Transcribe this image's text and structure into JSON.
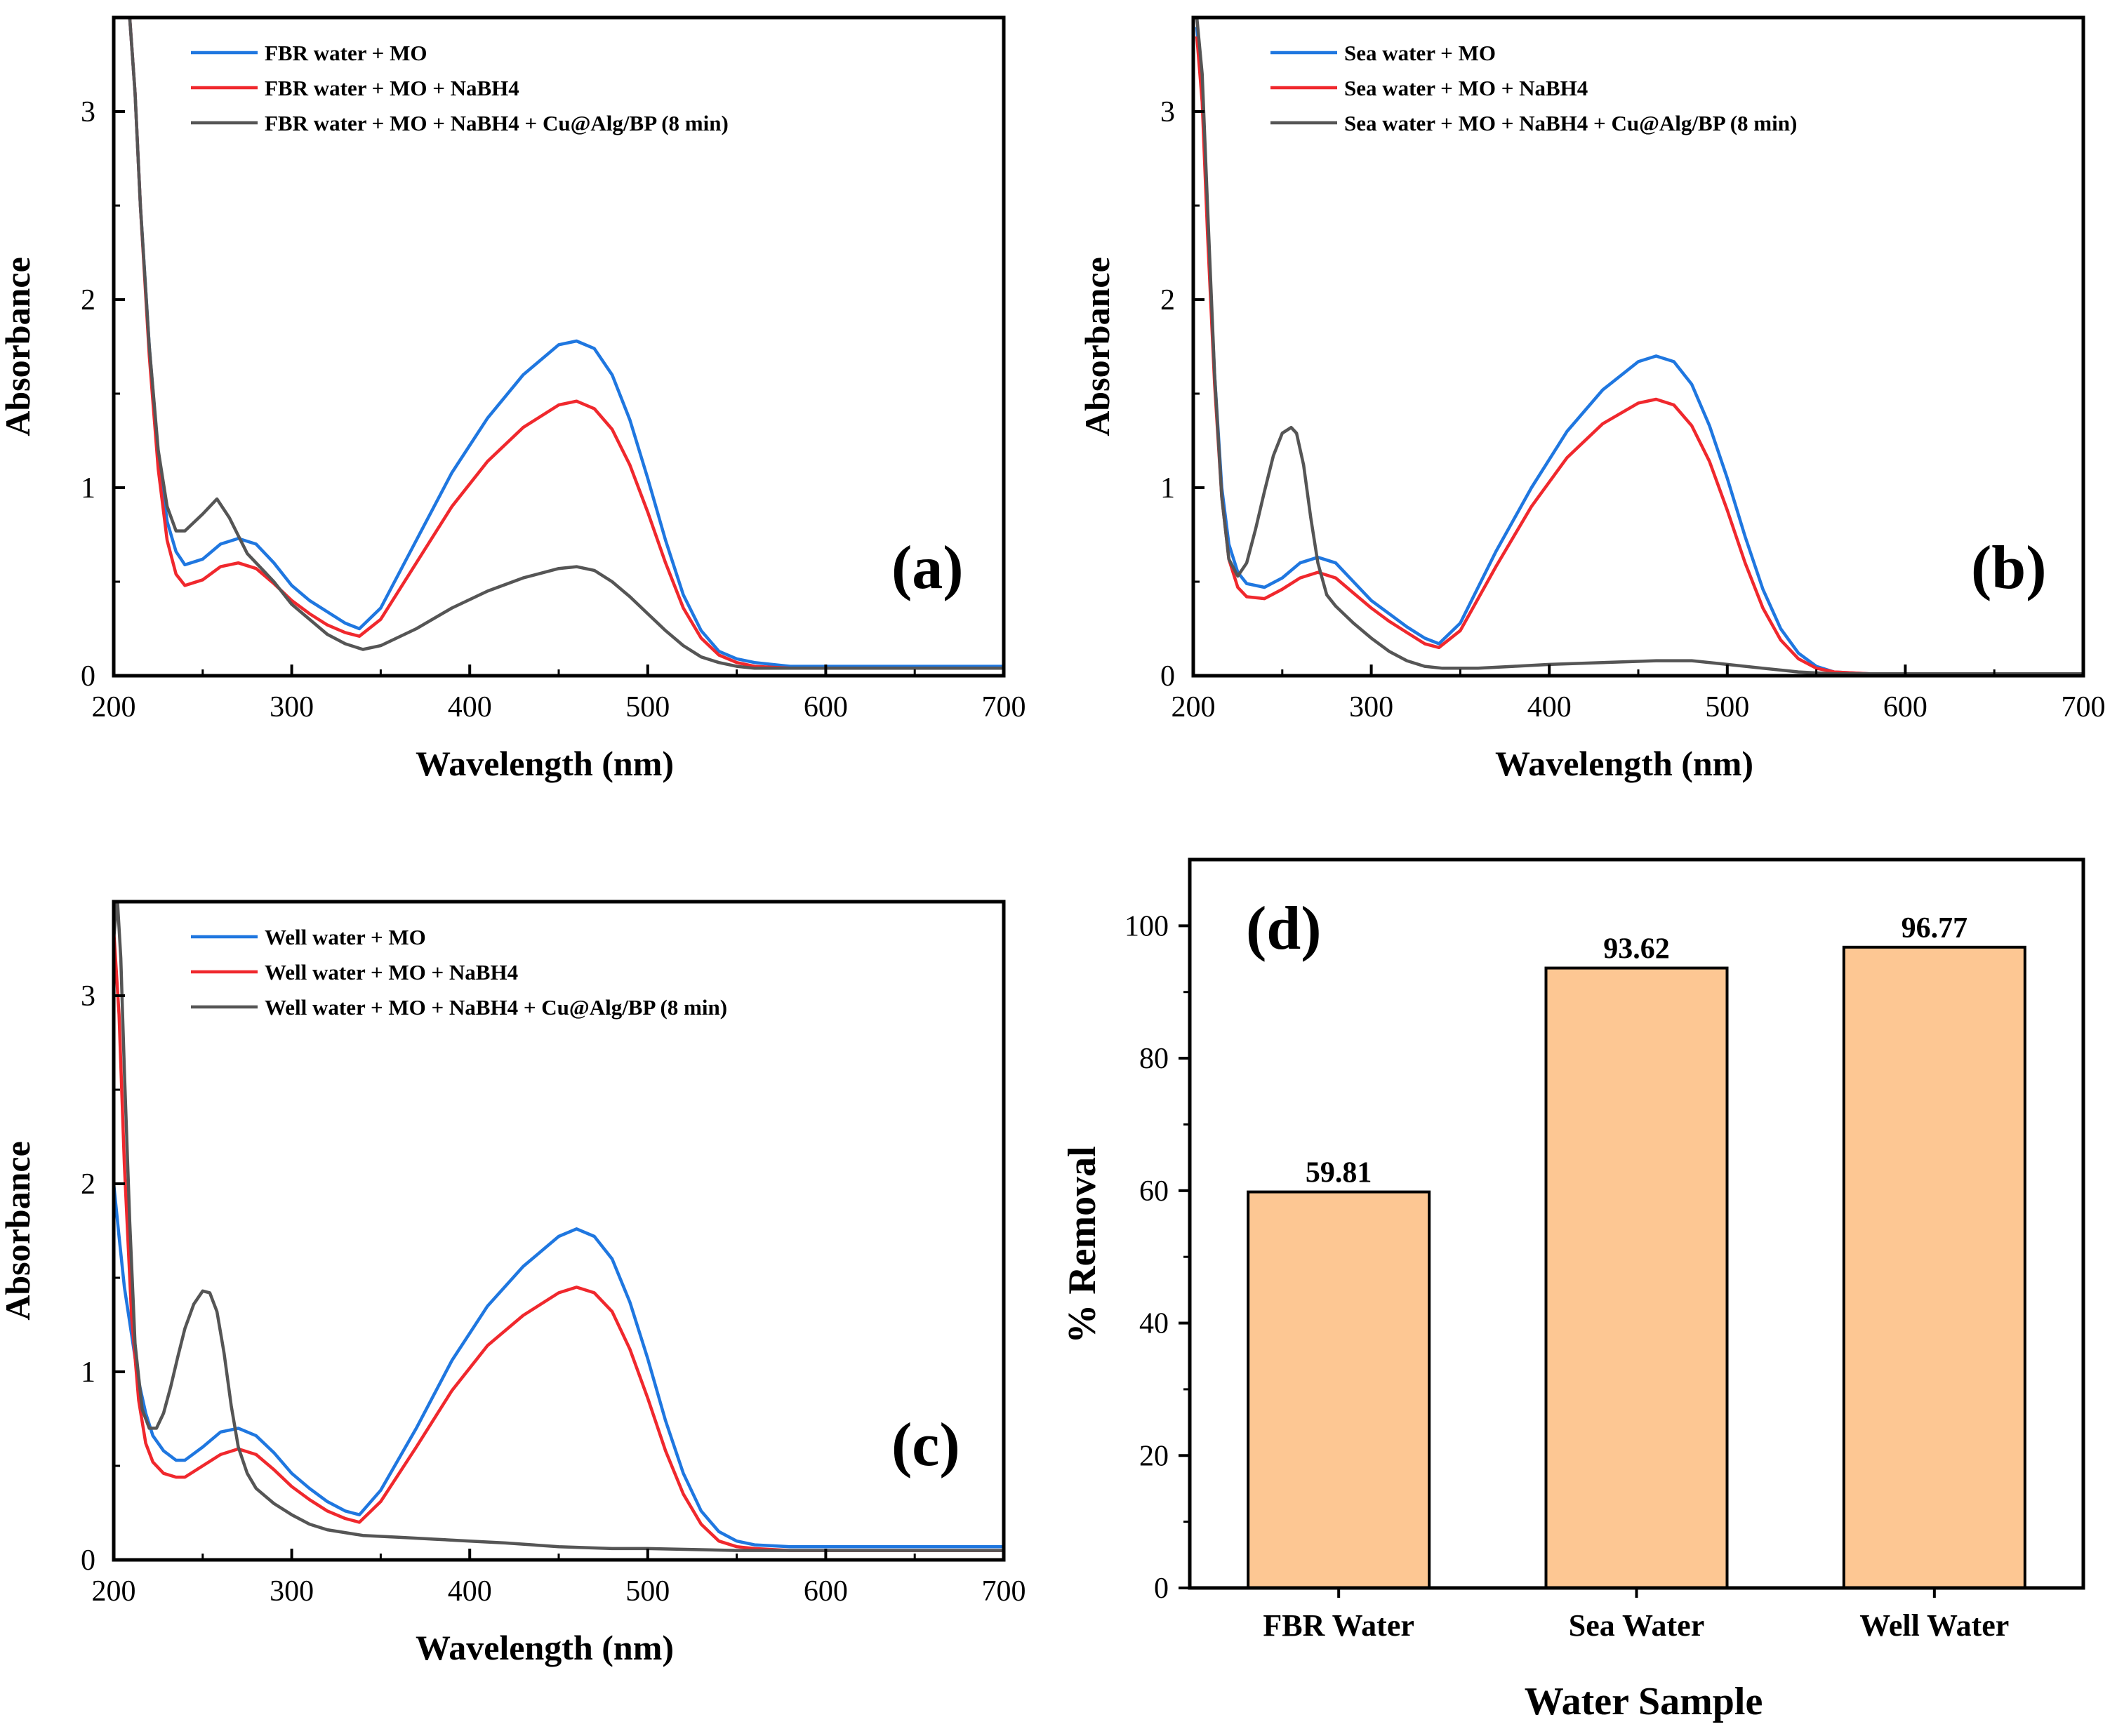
{
  "figure": "UV-vis absorbance spectra of MO reduction in real water samples and % removal",
  "colors": {
    "blue": "#1f77e0",
    "red": "#f0282d",
    "gray": "#555555",
    "bar": "#fdc793",
    "axis": "#000000"
  },
  "chart_data": [
    {
      "panel": "(a)",
      "type": "line",
      "xlabel": "Wavelength (nm)",
      "ylabel": "Absorbance",
      "xlim": [
        200,
        700
      ],
      "ylim": [
        0,
        3.5
      ],
      "xticks": [
        "200",
        "300",
        "400",
        "500",
        "600",
        "700"
      ],
      "yticks": [
        "0",
        "1",
        "2",
        "3"
      ],
      "legend_position": "top-left",
      "series": [
        {
          "name": "FBR water + MO",
          "color": "#1f77e0",
          "x": [
            209,
            212,
            215,
            220,
            225,
            230,
            235,
            240,
            250,
            260,
            270,
            280,
            290,
            300,
            310,
            320,
            330,
            338,
            350,
            370,
            390,
            410,
            430,
            450,
            460,
            470,
            480,
            490,
            500,
            510,
            520,
            530,
            540,
            550,
            560,
            580,
            600,
            650,
            700
          ],
          "y": [
            3.5,
            3.1,
            2.5,
            1.75,
            1.18,
            0.82,
            0.66,
            0.59,
            0.62,
            0.7,
            0.73,
            0.7,
            0.6,
            0.48,
            0.4,
            0.34,
            0.28,
            0.25,
            0.36,
            0.72,
            1.08,
            1.37,
            1.6,
            1.76,
            1.78,
            1.74,
            1.6,
            1.36,
            1.05,
            0.72,
            0.43,
            0.24,
            0.13,
            0.09,
            0.07,
            0.05,
            0.05,
            0.05,
            0.05
          ]
        },
        {
          "name": "FBR water + MO + NaBH4",
          "color": "#f0282d",
          "x": [
            209,
            212,
            215,
            220,
            225,
            230,
            235,
            240,
            250,
            260,
            270,
            280,
            290,
            300,
            310,
            320,
            330,
            338,
            350,
            370,
            390,
            410,
            430,
            450,
            460,
            470,
            480,
            490,
            500,
            510,
            520,
            530,
            540,
            550,
            560,
            580,
            600,
            650,
            700
          ],
          "y": [
            3.5,
            3.1,
            2.5,
            1.7,
            1.1,
            0.72,
            0.54,
            0.48,
            0.51,
            0.58,
            0.6,
            0.57,
            0.49,
            0.4,
            0.33,
            0.27,
            0.23,
            0.21,
            0.3,
            0.6,
            0.9,
            1.14,
            1.32,
            1.44,
            1.46,
            1.42,
            1.31,
            1.12,
            0.87,
            0.6,
            0.36,
            0.2,
            0.11,
            0.07,
            0.05,
            0.04,
            0.04,
            0.04,
            0.04
          ]
        },
        {
          "name": "FBR water + MO + NaBH4 + Cu@Alg/BP (8 min)",
          "color": "#555555",
          "x": [
            209,
            212,
            215,
            220,
            225,
            230,
            235,
            240,
            250,
            258,
            265,
            275,
            290,
            300,
            310,
            320,
            330,
            340,
            350,
            370,
            390,
            410,
            430,
            450,
            460,
            470,
            480,
            490,
            500,
            510,
            520,
            530,
            540,
            550,
            560,
            580,
            600,
            650,
            700
          ],
          "y": [
            3.5,
            3.1,
            2.5,
            1.75,
            1.2,
            0.9,
            0.77,
            0.77,
            0.86,
            0.94,
            0.84,
            0.65,
            0.5,
            0.38,
            0.3,
            0.22,
            0.17,
            0.14,
            0.16,
            0.25,
            0.36,
            0.45,
            0.52,
            0.57,
            0.58,
            0.56,
            0.5,
            0.42,
            0.33,
            0.24,
            0.16,
            0.1,
            0.07,
            0.05,
            0.04,
            0.04,
            0.04,
            0.04,
            0.04
          ]
        }
      ]
    },
    {
      "panel": "(b)",
      "type": "line",
      "xlabel": "Wavelength (nm)",
      "ylabel": "Absorbance",
      "xlim": [
        200,
        700
      ],
      "ylim": [
        0,
        3.5
      ],
      "xticks": [
        "200",
        "300",
        "400",
        "500",
        "600",
        "700"
      ],
      "yticks": [
        "0",
        "1",
        "2",
        "3"
      ],
      "legend_position": "top-left",
      "series": [
        {
          "name": "Sea water + MO",
          "color": "#1f77e0",
          "x": [
            202,
            205,
            208,
            212,
            216,
            220,
            225,
            230,
            240,
            250,
            260,
            270,
            280,
            290,
            300,
            310,
            320,
            330,
            338,
            350,
            370,
            390,
            410,
            430,
            450,
            460,
            470,
            480,
            490,
            500,
            510,
            520,
            530,
            540,
            550,
            560,
            580,
            600,
            650,
            700
          ],
          "y": [
            3.45,
            3.1,
            2.4,
            1.6,
            1.0,
            0.7,
            0.55,
            0.49,
            0.47,
            0.52,
            0.6,
            0.63,
            0.6,
            0.5,
            0.4,
            0.33,
            0.26,
            0.2,
            0.17,
            0.28,
            0.66,
            1.0,
            1.3,
            1.52,
            1.67,
            1.7,
            1.67,
            1.55,
            1.33,
            1.05,
            0.74,
            0.46,
            0.25,
            0.12,
            0.05,
            0.02,
            0.01,
            0.01,
            0.01,
            0.01
          ]
        },
        {
          "name": "Sea water + MO + NaBH4",
          "color": "#f0282d",
          "x": [
            202,
            205,
            208,
            212,
            216,
            220,
            225,
            230,
            240,
            250,
            260,
            270,
            280,
            290,
            300,
            310,
            320,
            330,
            338,
            350,
            370,
            390,
            410,
            430,
            450,
            460,
            470,
            480,
            490,
            500,
            510,
            520,
            530,
            540,
            550,
            560,
            580,
            600,
            650,
            700
          ],
          "y": [
            3.4,
            3.05,
            2.35,
            1.55,
            0.95,
            0.62,
            0.47,
            0.42,
            0.41,
            0.46,
            0.52,
            0.55,
            0.52,
            0.44,
            0.36,
            0.29,
            0.23,
            0.17,
            0.15,
            0.24,
            0.58,
            0.9,
            1.16,
            1.34,
            1.45,
            1.47,
            1.44,
            1.33,
            1.14,
            0.88,
            0.6,
            0.36,
            0.19,
            0.09,
            0.04,
            0.02,
            0.01,
            0.01,
            0.01,
            0.01
          ]
        },
        {
          "name": "Sea water + MO + NaBH4 + Cu@Alg/BP (8 min)",
          "color": "#555555",
          "x": [
            202,
            205,
            208,
            212,
            216,
            220,
            225,
            230,
            235,
            240,
            245,
            250,
            255,
            258,
            262,
            266,
            270,
            275,
            280,
            290,
            300,
            310,
            320,
            330,
            340,
            360,
            380,
            400,
            430,
            460,
            480,
            500,
            520,
            540,
            560,
            580,
            600,
            650,
            700
          ],
          "y": [
            3.5,
            3.2,
            2.5,
            1.6,
            0.95,
            0.62,
            0.53,
            0.6,
            0.78,
            0.98,
            1.17,
            1.29,
            1.32,
            1.29,
            1.12,
            0.84,
            0.6,
            0.43,
            0.37,
            0.28,
            0.2,
            0.13,
            0.08,
            0.05,
            0.04,
            0.04,
            0.05,
            0.06,
            0.07,
            0.08,
            0.08,
            0.06,
            0.04,
            0.02,
            0.01,
            0.01,
            0.01,
            0.01,
            0.01
          ]
        }
      ]
    },
    {
      "panel": "(c)",
      "type": "line",
      "xlabel": "Wavelength (nm)",
      "ylabel": "Absorbance",
      "xlim": [
        200,
        700
      ],
      "ylim": [
        0,
        3.5
      ],
      "xticks": [
        "200",
        "300",
        "400",
        "500",
        "600",
        "700"
      ],
      "yticks": [
        "0",
        "1",
        "2",
        "3"
      ],
      "legend_position": "top-left",
      "series": [
        {
          "name": "Well water + MO",
          "color": "#1f77e0",
          "x": [
            200,
            203,
            206,
            210,
            214,
            218,
            222,
            228,
            235,
            240,
            250,
            260,
            270,
            280,
            290,
            300,
            310,
            320,
            330,
            338,
            350,
            370,
            390,
            410,
            430,
            450,
            460,
            470,
            480,
            490,
            500,
            510,
            520,
            530,
            540,
            550,
            560,
            580,
            600,
            650,
            700
          ],
          "y": [
            2.0,
            1.72,
            1.45,
            1.2,
            0.95,
            0.78,
            0.66,
            0.58,
            0.53,
            0.53,
            0.6,
            0.68,
            0.7,
            0.66,
            0.57,
            0.46,
            0.38,
            0.31,
            0.26,
            0.24,
            0.37,
            0.7,
            1.06,
            1.35,
            1.56,
            1.72,
            1.76,
            1.72,
            1.6,
            1.37,
            1.07,
            0.74,
            0.46,
            0.26,
            0.15,
            0.1,
            0.08,
            0.07,
            0.07,
            0.07,
            0.07
          ]
        },
        {
          "name": "Well water + MO + NaBH4",
          "color": "#f0282d",
          "x": [
            200,
            203,
            206,
            210,
            214,
            218,
            222,
            228,
            235,
            240,
            250,
            260,
            270,
            280,
            290,
            300,
            310,
            320,
            330,
            338,
            350,
            370,
            390,
            410,
            430,
            450,
            460,
            470,
            480,
            490,
            500,
            510,
            520,
            530,
            540,
            550,
            560,
            580,
            600,
            650,
            700
          ],
          "y": [
            3.35,
            2.9,
            2.1,
            1.3,
            0.85,
            0.62,
            0.52,
            0.46,
            0.44,
            0.44,
            0.5,
            0.56,
            0.59,
            0.56,
            0.48,
            0.39,
            0.32,
            0.26,
            0.22,
            0.2,
            0.31,
            0.6,
            0.9,
            1.14,
            1.3,
            1.42,
            1.45,
            1.42,
            1.32,
            1.12,
            0.86,
            0.58,
            0.35,
            0.19,
            0.1,
            0.07,
            0.06,
            0.05,
            0.05,
            0.05,
            0.05
          ]
        },
        {
          "name": "Well water + MO + NaBH4 + Cu@Alg/BP (8 min)",
          "color": "#555555",
          "x": [
            200,
            202,
            204,
            206,
            209,
            212,
            216,
            220,
            224,
            228,
            232,
            236,
            240,
            245,
            250,
            254,
            258,
            262,
            266,
            270,
            275,
            280,
            290,
            300,
            310,
            320,
            340,
            360,
            380,
            400,
            420,
            450,
            480,
            500,
            550,
            600,
            650,
            700
          ],
          "y": [
            3.3,
            3.52,
            3.2,
            2.6,
            1.8,
            1.15,
            0.8,
            0.7,
            0.7,
            0.78,
            0.92,
            1.08,
            1.23,
            1.36,
            1.43,
            1.42,
            1.32,
            1.1,
            0.82,
            0.6,
            0.46,
            0.38,
            0.3,
            0.24,
            0.19,
            0.16,
            0.13,
            0.12,
            0.11,
            0.1,
            0.09,
            0.07,
            0.06,
            0.06,
            0.05,
            0.05,
            0.05,
            0.05
          ]
        }
      ]
    },
    {
      "panel": "(d)",
      "type": "bar",
      "xlabel": "Water Sample",
      "ylabel": "% Removal",
      "ylim": [
        0,
        110
      ],
      "yticks": [
        "0",
        "20",
        "40",
        "60",
        "80",
        "100"
      ],
      "categories": [
        "FBR Water",
        "Sea Water",
        "Well Water"
      ],
      "values": [
        59.81,
        93.62,
        96.77
      ],
      "value_labels": [
        "59.81",
        "93.62",
        "96.77"
      ],
      "bar_color": "#fdc793"
    }
  ]
}
